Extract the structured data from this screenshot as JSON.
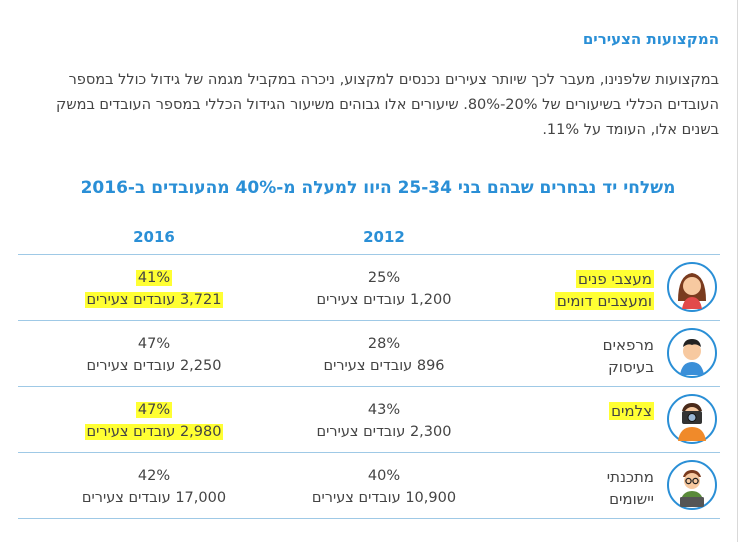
{
  "section": {
    "heading": "המקצועות הצעירים",
    "intro_lines": [
      "במקצועות שלפנינו, מעבר לכך שיותר צעירים נכנסים למקצוע, ניכרה במקביל מגמה של גידול כולל במספר",
      "העובדים הכללי בשיעורים של 20%-80%. שיעורים אלו גבוהים משיעור הגידול הכללי במספר העובדים במשק",
      "בשנים אלו, העומד על 11%."
    ]
  },
  "table": {
    "title": "משלחי יד נבחרים שבהם בני 25-34 היוו למעלה מ-40% מהעובדים ב-2016",
    "headers": {
      "y2012": "2012",
      "y2016": "2016"
    },
    "rows": [
      {
        "profession_lines": [
          "מעצבי פנים",
          "ומעצבים דומים"
        ],
        "avatar_icon": "woman-designer-icon",
        "y2012_pct": "25%",
        "y2012_workers": "1,200 עובדים צעירים",
        "y2016_pct": "41%",
        "y2016_workers": "3,721 עובדים צעירים"
      },
      {
        "profession_lines": [
          "מרפאים",
          "בעיסוק"
        ],
        "avatar_icon": "man-therapist-icon",
        "y2012_pct": "28%",
        "y2012_workers": "896 עובדים צעירים",
        "y2016_pct": "47%",
        "y2016_workers": "2,250 עובדים צעירים"
      },
      {
        "profession_lines": [
          "צלמים",
          ""
        ],
        "avatar_icon": "photographer-icon",
        "y2012_pct": "43%",
        "y2012_workers": "2,300 עובדים צעירים",
        "y2016_pct": "47%",
        "y2016_workers": "2,980 עובדים צעירים"
      },
      {
        "profession_lines": [
          "מתכנתי",
          "יישומים"
        ],
        "avatar_icon": "programmer-icon",
        "y2012_pct": "40%",
        "y2012_workers": "10,900 עובדים צעירים",
        "y2016_pct": "42%",
        "y2016_workers": "17,000 עובדים צעירים"
      }
    ]
  },
  "colors": {
    "accent": "#2a8fd6",
    "highlight": "#ffff33",
    "rule": "#9fc9e6"
  }
}
